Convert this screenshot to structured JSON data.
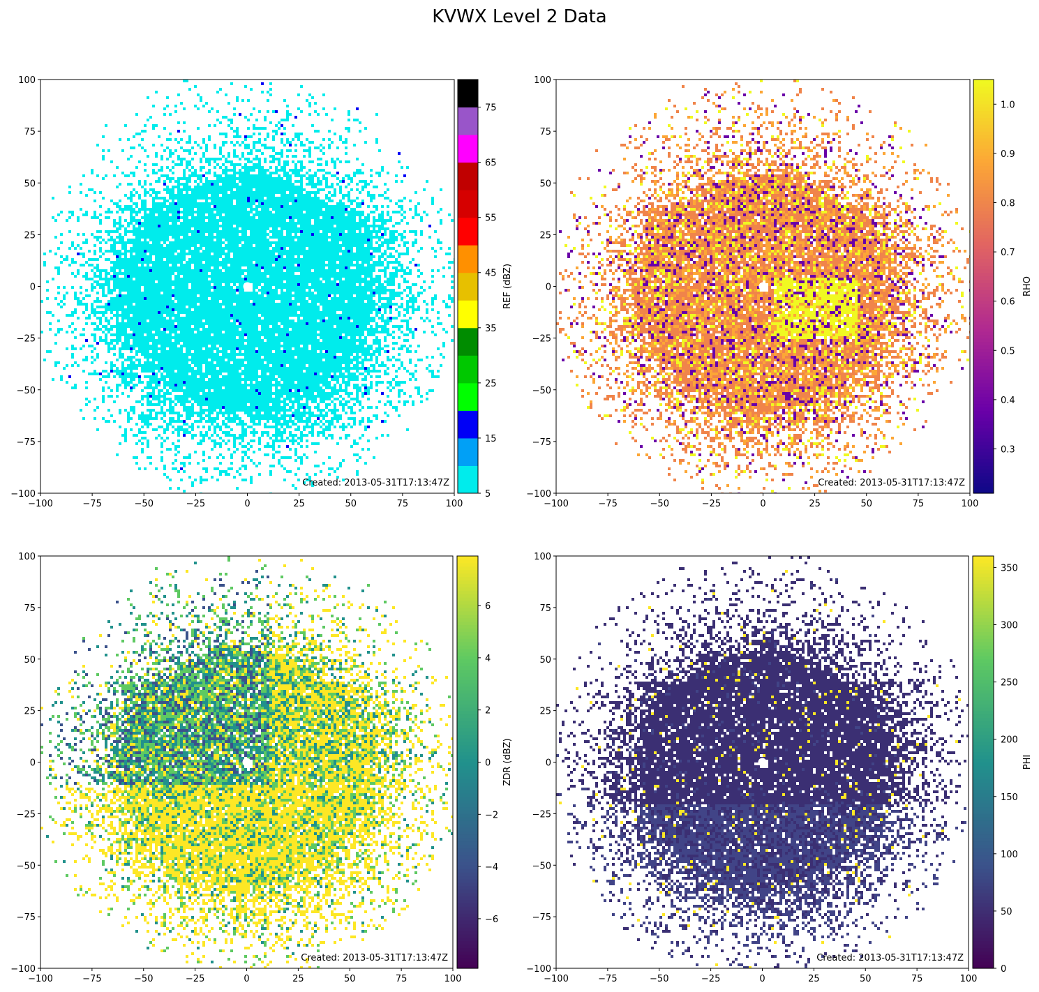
{
  "figure": {
    "title": "KVWX Level 2 Data"
  },
  "chart_data": [
    {
      "type": "heatmap",
      "panel": "top-left",
      "field": "REF",
      "colorbar_label": "REF (dBZ)",
      "colormap": "NWS reflectivity (discrete)",
      "colorbar_ticks": [
        "5",
        "15",
        "25",
        "35",
        "45",
        "55",
        "65",
        "75"
      ],
      "colorbar_range": [
        5,
        80
      ],
      "colorbar_bins": [
        {
          "from": 5,
          "to": 10,
          "color": "#00ecec"
        },
        {
          "from": 10,
          "to": 15,
          "color": "#01a0f6"
        },
        {
          "from": 15,
          "to": 20,
          "color": "#0000f6"
        },
        {
          "from": 20,
          "to": 25,
          "color": "#00ff00"
        },
        {
          "from": 25,
          "to": 30,
          "color": "#00c800"
        },
        {
          "from": 30,
          "to": 35,
          "color": "#008c00"
        },
        {
          "from": 35,
          "to": 40,
          "color": "#ffff00"
        },
        {
          "from": 40,
          "to": 45,
          "color": "#e7c000"
        },
        {
          "from": 45,
          "to": 50,
          "color": "#ff9000"
        },
        {
          "from": 50,
          "to": 55,
          "color": "#ff0000"
        },
        {
          "from": 55,
          "to": 60,
          "color": "#d60000"
        },
        {
          "from": 60,
          "to": 65,
          "color": "#c00000"
        },
        {
          "from": 65,
          "to": 70,
          "color": "#ff00ff"
        },
        {
          "from": 70,
          "to": 75,
          "color": "#9955c9"
        },
        {
          "from": 75,
          "to": 80,
          "color": "#000000"
        }
      ],
      "dominant_colors": [
        "#00ecec",
        "#0000f6"
      ],
      "xlim": [
        -100,
        100
      ],
      "ylim": [
        -100,
        100
      ],
      "xticks": [
        "−100",
        "−75",
        "−50",
        "−25",
        "0",
        "25",
        "50",
        "75",
        "100"
      ],
      "yticks": [
        "100",
        "75",
        "50",
        "25",
        "0",
        "−25",
        "−50",
        "−75",
        "−100"
      ],
      "annotation": "Created: 2013-05-31T17:13:47Z"
    },
    {
      "type": "heatmap",
      "panel": "top-right",
      "field": "RHO",
      "colorbar_label": "RHO",
      "colormap": "plasma",
      "colorbar_ticks": [
        "0.3",
        "0.4",
        "0.5",
        "0.6",
        "0.7",
        "0.8",
        "0.9",
        "1.0"
      ],
      "colorbar_range": [
        0.21,
        1.05
      ],
      "colormap_stops": [
        "#0d0887",
        "#6a00a8",
        "#b12a90",
        "#e16462",
        "#fca636",
        "#f0f921"
      ],
      "dominant_colors": [
        "#f0844a",
        "#fca636",
        "#f0f921",
        "#6a00a8"
      ],
      "xlim": [
        -100,
        100
      ],
      "ylim": [
        -100,
        100
      ],
      "xticks": [
        "−100",
        "−75",
        "−50",
        "−25",
        "0",
        "25",
        "50",
        "75",
        "100"
      ],
      "yticks": [
        "100",
        "75",
        "50",
        "25",
        "0",
        "−25",
        "−50",
        "−75",
        "−100"
      ],
      "annotation": "Created: 2013-05-31T17:13:47Z"
    },
    {
      "type": "heatmap",
      "panel": "bottom-left",
      "field": "ZDR",
      "colorbar_label": "ZDR (dBZ)",
      "colormap": "viridis",
      "colorbar_ticks": [
        "−6",
        "−4",
        "−2",
        "0",
        "2",
        "4",
        "6"
      ],
      "colorbar_range": [
        -7.9,
        7.9
      ],
      "colormap_stops": [
        "#440154",
        "#3b528b",
        "#21918c",
        "#5ec962",
        "#fde725"
      ],
      "dominant_colors": [
        "#fde725",
        "#5ec962",
        "#21918c",
        "#3b528b"
      ],
      "xlim": [
        -100,
        100
      ],
      "ylim": [
        -100,
        100
      ],
      "xticks": [
        "−100",
        "−75",
        "−50",
        "−25",
        "0",
        "25",
        "50",
        "75",
        "100"
      ],
      "yticks": [
        "100",
        "75",
        "50",
        "25",
        "0",
        "−25",
        "−50",
        "−75",
        "−100"
      ],
      "annotation": "Created: 2013-05-31T17:13:47Z"
    },
    {
      "type": "heatmap",
      "panel": "bottom-right",
      "field": "PHI",
      "colorbar_label": "PHI",
      "colormap": "viridis",
      "colorbar_ticks": [
        "0",
        "50",
        "100",
        "150",
        "200",
        "250",
        "300",
        "350"
      ],
      "colorbar_range": [
        0,
        360
      ],
      "colormap_stops": [
        "#440154",
        "#3b528b",
        "#21918c",
        "#5ec962",
        "#fde725"
      ],
      "dominant_colors": [
        "#3b2f73",
        "#414487",
        "#fde725"
      ],
      "xlim": [
        -100,
        100
      ],
      "ylim": [
        -100,
        100
      ],
      "xticks": [
        "−100",
        "−75",
        "−50",
        "−25",
        "0",
        "25",
        "50",
        "75",
        "100"
      ],
      "yticks": [
        "100",
        "75",
        "50",
        "25",
        "0",
        "−25",
        "−50",
        "−75",
        "−100"
      ],
      "annotation": "Created: 2013-05-31T17:13:47Z"
    }
  ]
}
